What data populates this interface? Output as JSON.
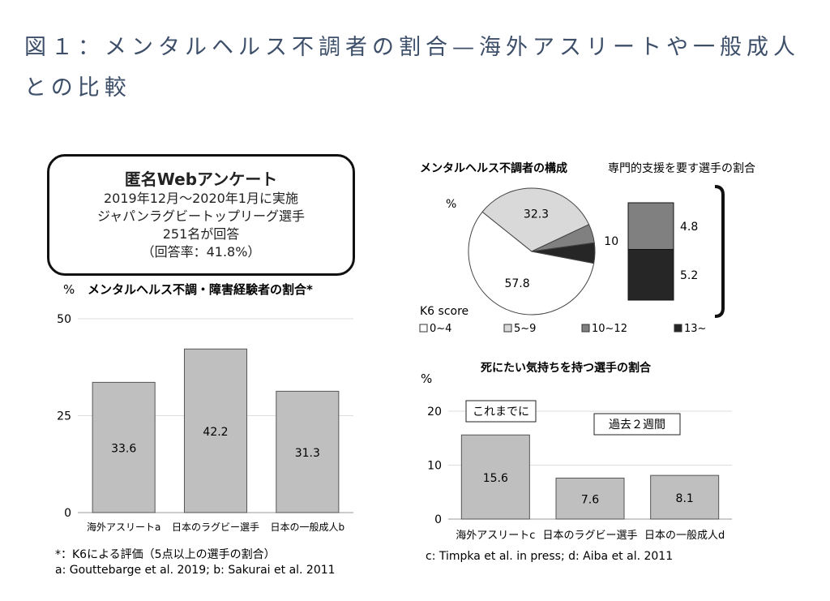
{
  "page": {
    "title": "図１：メンタルヘルス不調者の割合—海外アスリートや一般成人との比較"
  },
  "survey": {
    "heading": "匿名Webアンケート",
    "lines": [
      "2019年12月～2020年1月に実施",
      "ジャパンラグビートップリーグ選手",
      "251名が回答",
      "（回答率：41.8%）"
    ]
  },
  "chart_data": [
    {
      "type": "bar",
      "title": "メンタルヘルス不調・障害経験者の割合*",
      "ylabel": "%",
      "ylim": [
        0,
        50
      ],
      "yticks": [
        0,
        25,
        50
      ],
      "categories": [
        "海外アスリートa",
        "日本のラグビー選手",
        "日本の一般成人b"
      ],
      "values": [
        33.6,
        42.2,
        31.3
      ],
      "bar_color": "#bfbfbf",
      "footnotes": [
        "*：K6による評価（5点以上の選手の割合）",
        "a: Gouttebarge et al. 2019; b: Sakurai et al. 2011"
      ]
    },
    {
      "type": "pie",
      "title": "メンタルヘルス不調者の構成",
      "unit_label": "%",
      "legend_title": "K6 score",
      "slices": [
        {
          "label": "0~4",
          "value": 57.8,
          "color": "#ffffff"
        },
        {
          "label": "5~9",
          "value": 32.3,
          "color": "#d9d9d9"
        },
        {
          "label": "10~12",
          "value": 4.8,
          "color": "#808080"
        },
        {
          "label": "13~",
          "value": 5.2,
          "color": "#262626"
        }
      ],
      "pie_label_combined": "10",
      "stack_title": "専門的支援を要す選手の割合",
      "stack": [
        {
          "label": "4.8",
          "value": 4.8,
          "color": "#808080"
        },
        {
          "label": "5.2",
          "value": 5.2,
          "color": "#262626"
        }
      ]
    },
    {
      "type": "bar",
      "title": "死にたい気持ちを持つ選手の割合",
      "ylabel": "%",
      "ylim": [
        0,
        20
      ],
      "yticks": [
        0,
        10,
        20
      ],
      "categories": [
        "海外アスリートc",
        "日本のラグビー選手",
        "日本の一般成人d"
      ],
      "values": [
        15.6,
        7.6,
        8.1
      ],
      "bar_color": "#bfbfbf",
      "annotations": [
        "これまでに",
        "過去２週間"
      ],
      "footnotes": [
        "c: Timpka et al. in press; d: Aiba et al. 2011"
      ]
    }
  ]
}
